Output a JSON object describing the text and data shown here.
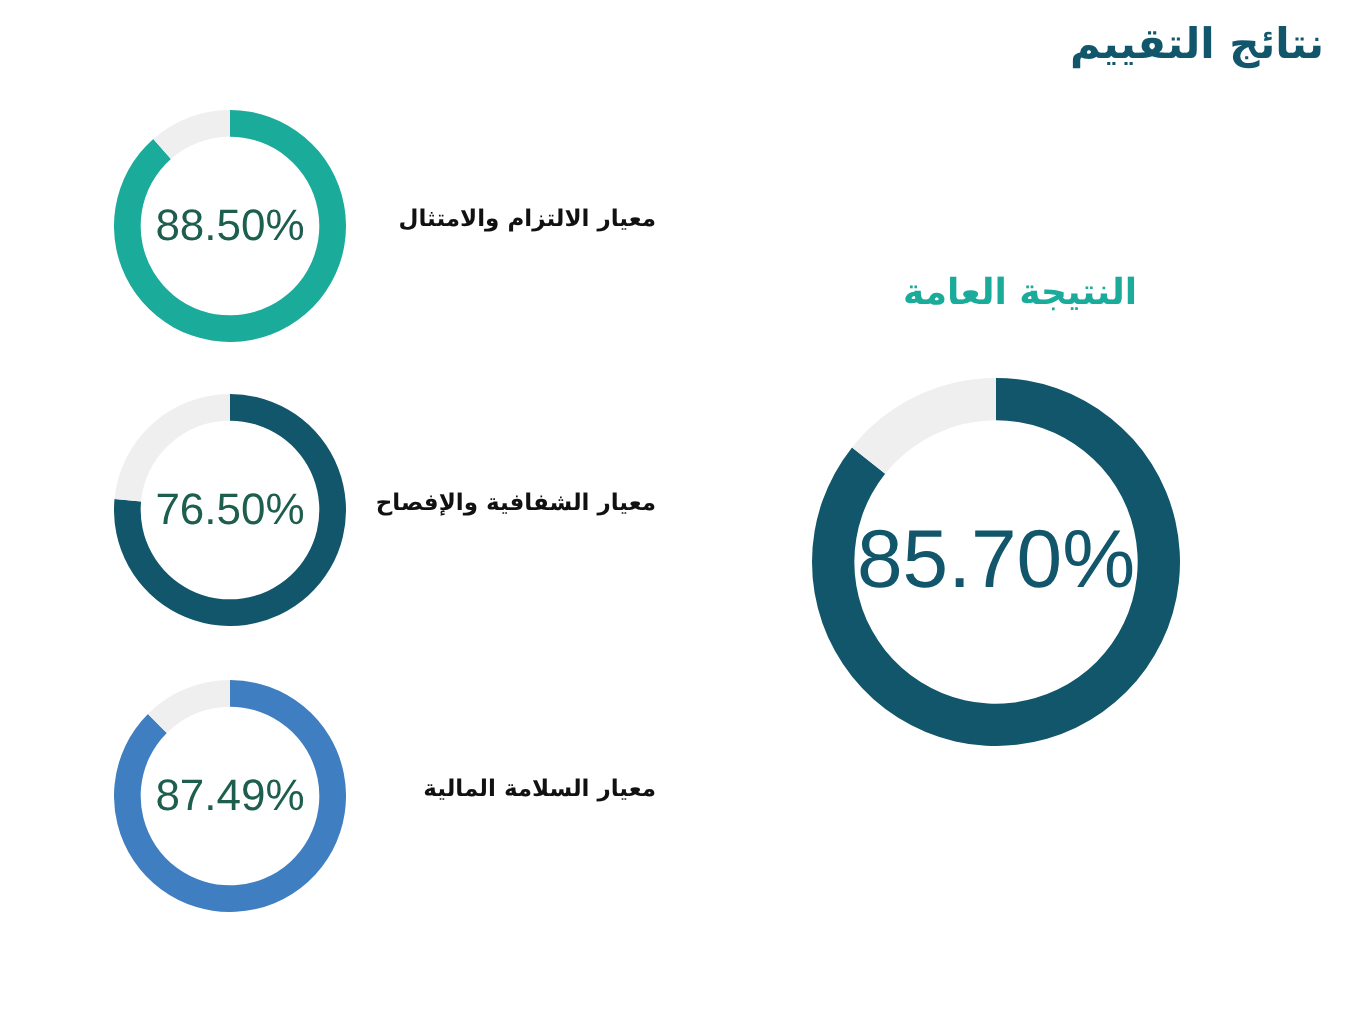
{
  "chart_data": [
    {
      "type": "other",
      "title": "نتائج التقييم"
    },
    {
      "type": "donut",
      "title": "النتيجة العامة",
      "categories": [
        null,
        null
      ],
      "values": [
        85.7,
        14.3
      ],
      "colors": [
        "#11566a",
        "#efefef"
      ],
      "value_labels": [
        "85.70%",
        null
      ]
    },
    {
      "type": "donut",
      "title": "معيار الالتزام والامتثال",
      "categories": [
        null,
        null
      ],
      "values": [
        88.5,
        11.5
      ],
      "colors": [
        "#1aab9b",
        "#efefef"
      ],
      "value_labels": [
        "88.50%",
        null
      ]
    },
    {
      "type": "donut",
      "title": "معيار الشفافية والإفصاح",
      "categories": [
        null,
        null
      ],
      "values": [
        76.5,
        23.5
      ],
      "colors": [
        "#11566a",
        "#efefef"
      ],
      "value_labels": [
        "76.50%",
        null
      ]
    },
    {
      "type": "donut",
      "title": "معيار السلامة المالية",
      "categories": [
        null,
        null
      ],
      "values": [
        87.49,
        12.51
      ],
      "colors": [
        "#3f7fc1",
        "#efefef"
      ],
      "value_labels": [
        "87.49%",
        null
      ]
    }
  ]
}
